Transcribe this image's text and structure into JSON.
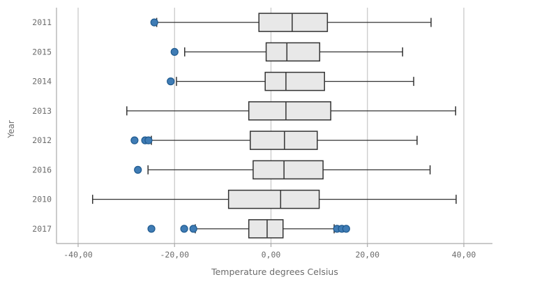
{
  "chart_data": {
    "type": "boxplot",
    "orientation": "horizontal",
    "title": "",
    "xlabel": "Temperature degrees Celsius",
    "ylabel": "Year",
    "xlim": [
      -44.5,
      45.9
    ],
    "grid": true,
    "x_ticks": [
      {
        "value": -40,
        "label": "-40,00"
      },
      {
        "value": -20,
        "label": "-20,00"
      },
      {
        "value": 0,
        "label": "0,00"
      },
      {
        "value": 20,
        "label": "20,00"
      },
      {
        "value": 40,
        "label": "40,00"
      }
    ],
    "categories": [
      "2011",
      "2015",
      "2014",
      "2013",
      "2012",
      "2016",
      "2010",
      "2017"
    ],
    "series": [
      {
        "year": "2011",
        "whisker_low": -23.7,
        "q1": -2.5,
        "median": 4.4,
        "q3": 11.7,
        "whisker_high": 33.2,
        "outliers": [
          -24.2
        ]
      },
      {
        "year": "2015",
        "whisker_low": -17.9,
        "q1": -1.0,
        "median": 3.3,
        "q3": 10.1,
        "whisker_high": 27.3,
        "outliers": [
          -20.0
        ]
      },
      {
        "year": "2014",
        "whisker_low": -19.6,
        "q1": -1.2,
        "median": 3.1,
        "q3": 11.1,
        "whisker_high": 29.6,
        "outliers": [
          -20.8
        ]
      },
      {
        "year": "2013",
        "whisker_low": -29.9,
        "q1": -4.6,
        "median": 3.1,
        "q3": 12.4,
        "whisker_high": 38.3,
        "outliers": []
      },
      {
        "year": "2012",
        "whisker_low": -24.8,
        "q1": -4.3,
        "median": 2.8,
        "q3": 9.6,
        "whisker_high": 30.3,
        "outliers": [
          -28.3,
          -26.1,
          -25.4
        ]
      },
      {
        "year": "2016",
        "whisker_low": -25.5,
        "q1": -3.7,
        "median": 2.7,
        "q3": 10.8,
        "whisker_high": 33.0,
        "outliers": [
          -27.6
        ]
      },
      {
        "year": "2010",
        "whisker_low": -37.0,
        "q1": -8.8,
        "median": 2.0,
        "q3": 10.0,
        "whisker_high": 38.4,
        "outliers": []
      },
      {
        "year": "2017",
        "whisker_low": -15.7,
        "q1": -4.6,
        "median": -0.8,
        "q3": 2.5,
        "whisker_high": 13.1,
        "outliers": [
          -24.8,
          -18.0,
          -16.1,
          13.7,
          14.7,
          15.6
        ]
      }
    ],
    "colors": {
      "box_fill": "#e8e8e8",
      "box_stroke": "#333333",
      "whisker": "#333333",
      "outlier_fill": "#3f7cb5",
      "outlier_stroke": "#1f5a8f",
      "gridline": "#c6c6c6",
      "axis_line": "#a9a9a9",
      "label": "#6b6b6b"
    }
  }
}
